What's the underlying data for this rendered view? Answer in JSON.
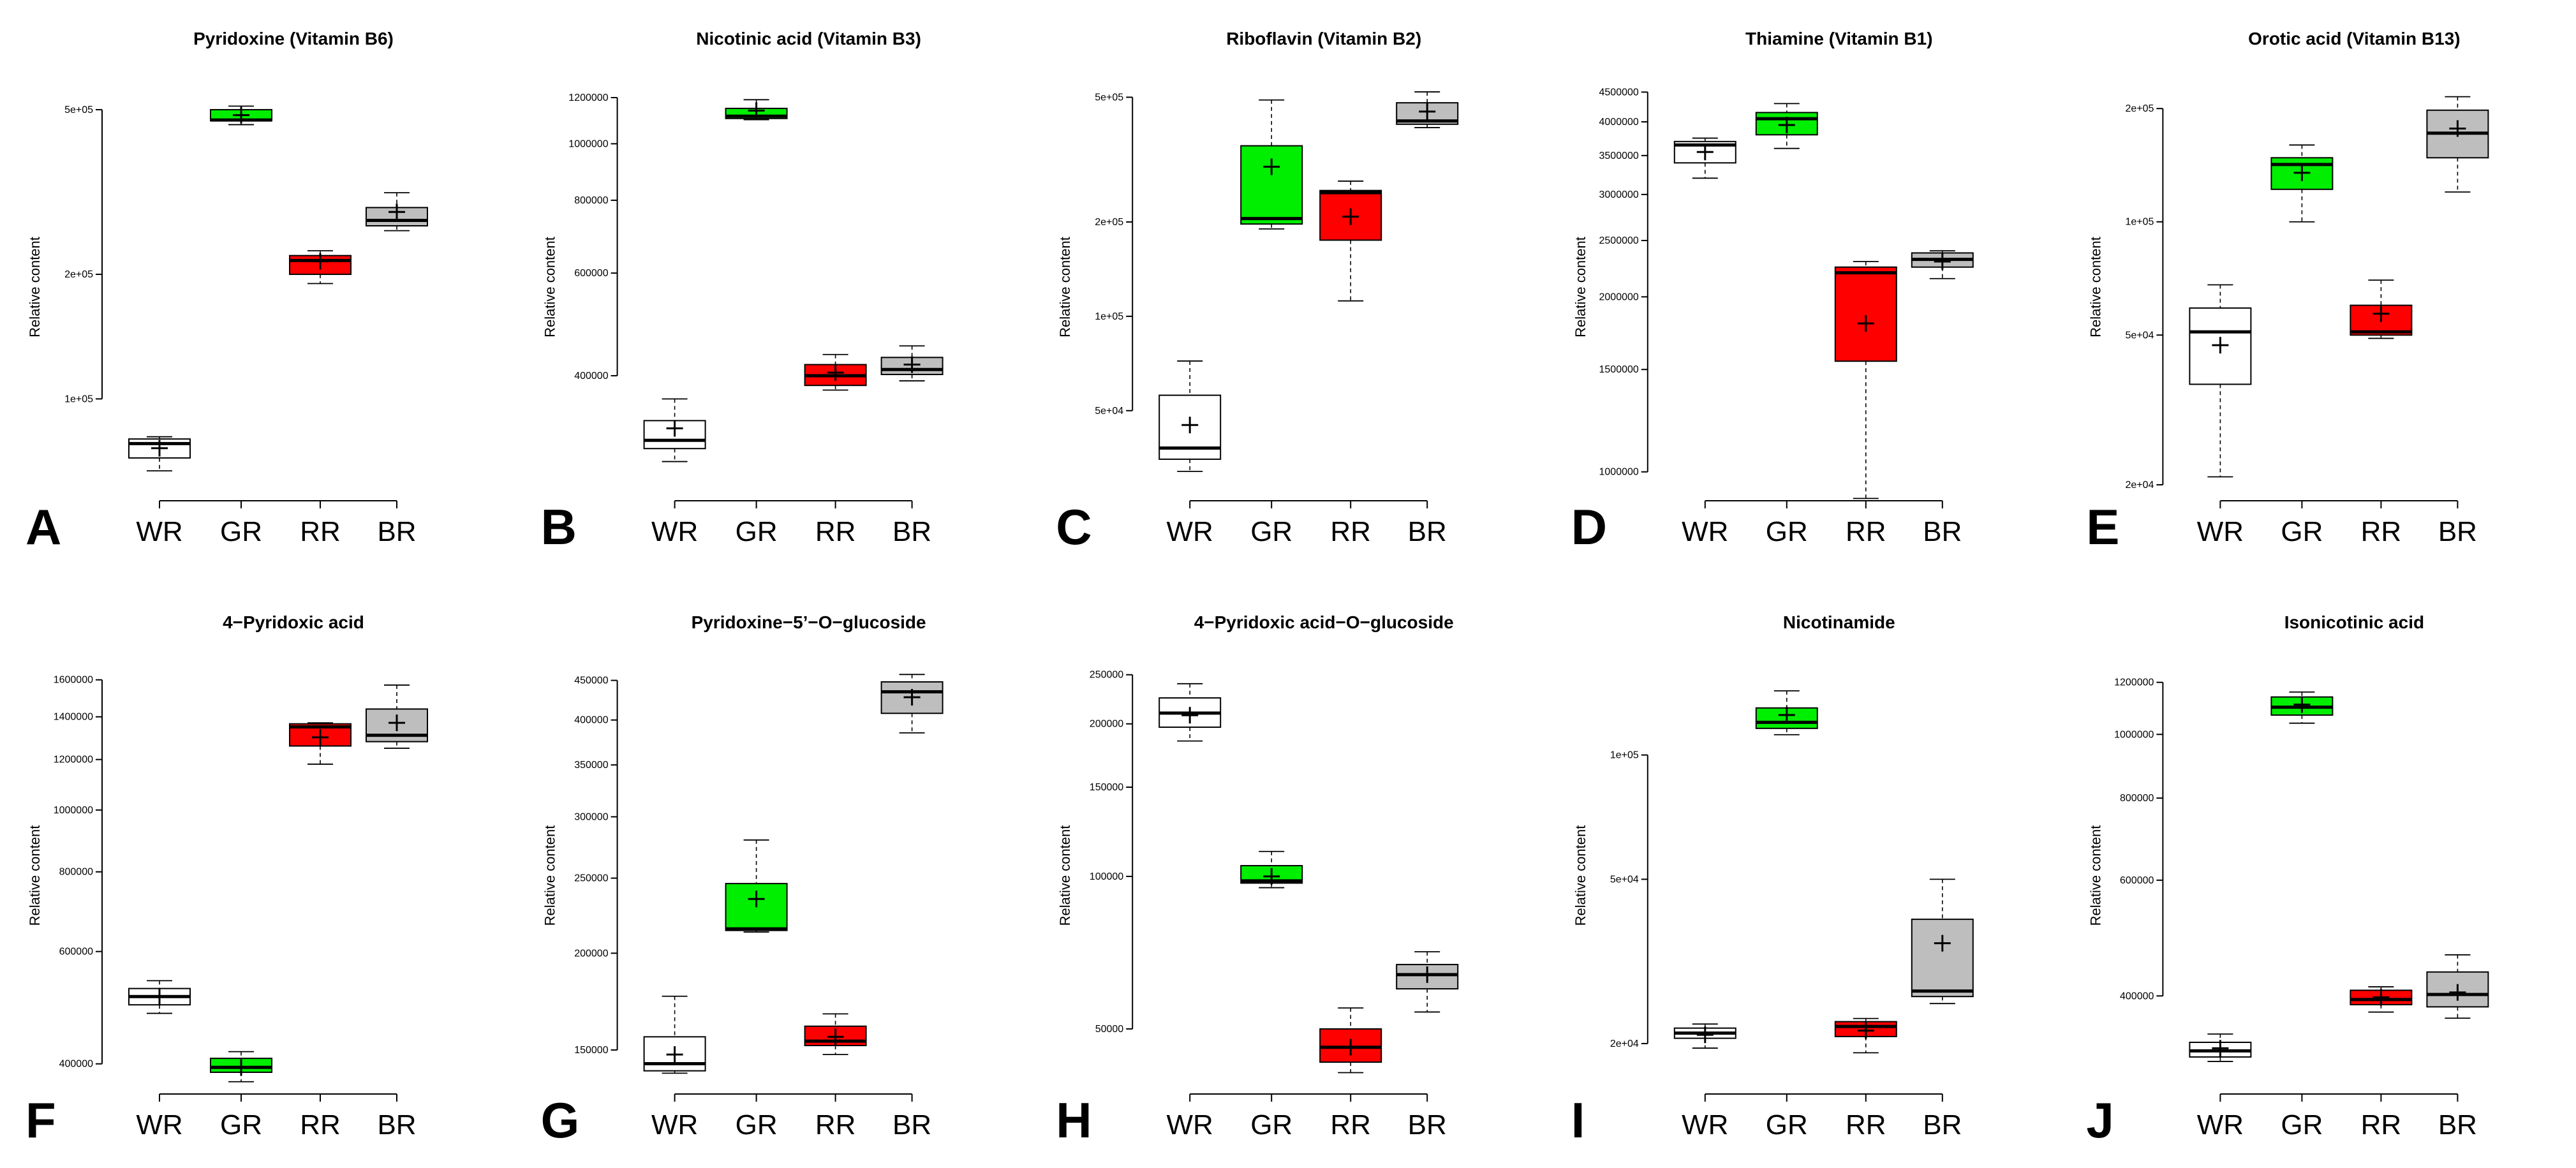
{
  "figure": {
    "ylabel": "Relative content",
    "categories": [
      "WR",
      "GR",
      "RR",
      "BR"
    ],
    "colors": {
      "WR": "#ffffff",
      "GR": "#00ee00",
      "RR": "#ff0000",
      "BR": "#bebebe"
    }
  },
  "chart_data": [
    {
      "letter": "A",
      "title": "Pyridoxine (Vitamin B6)",
      "type": "box",
      "scale": "log",
      "ylim": [
        62000,
        560000
      ],
      "ticks": [
        {
          "v": 100000,
          "label": "1e+05"
        },
        {
          "v": 200000,
          "label": "2e+05"
        },
        {
          "v": 500000,
          "label": "5e+05"
        }
      ],
      "boxes": [
        {
          "cat": "WR",
          "min": 67000,
          "q1": 72000,
          "median": 78000,
          "q3": 80000,
          "max": 81000,
          "mean": 76000
        },
        {
          "cat": "GR",
          "min": 460000,
          "q1": 470000,
          "median": 472000,
          "q3": 500000,
          "max": 510000,
          "mean": 485000
        },
        {
          "cat": "RR",
          "min": 190000,
          "q1": 200000,
          "median": 216000,
          "q3": 222000,
          "max": 228000,
          "mean": 215000
        },
        {
          "cat": "BR",
          "min": 255000,
          "q1": 262000,
          "median": 270000,
          "q3": 290000,
          "max": 315000,
          "mean": 283000
        }
      ]
    },
    {
      "letter": "B",
      "title": "Nicotinic acid (Vitamin B3)",
      "type": "box",
      "scale": "log",
      "ylim": [
        260000,
        1240000
      ],
      "ticks": [
        {
          "v": 400000,
          "label": "400000"
        },
        {
          "v": 600000,
          "label": "600000"
        },
        {
          "v": 800000,
          "label": "800000"
        },
        {
          "v": 1000000,
          "label": "1000000"
        },
        {
          "v": 1200000,
          "label": "1200000"
        }
      ],
      "boxes": [
        {
          "cat": "WR",
          "min": 285000,
          "q1": 300000,
          "median": 310000,
          "q3": 335000,
          "max": 365000,
          "mean": 325000
        },
        {
          "cat": "GR",
          "min": 1100000,
          "q1": 1105000,
          "median": 1115000,
          "q3": 1150000,
          "max": 1190000,
          "mean": 1140000
        },
        {
          "cat": "RR",
          "min": 378000,
          "q1": 385000,
          "median": 400000,
          "q3": 418000,
          "max": 435000,
          "mean": 405000
        },
        {
          "cat": "BR",
          "min": 392000,
          "q1": 402000,
          "median": 410000,
          "q3": 430000,
          "max": 450000,
          "mean": 418000
        }
      ]
    },
    {
      "letter": "C",
      "title": "Riboflavin (Vitamin B2)",
      "type": "box",
      "scale": "log",
      "ylim": [
        29000,
        530000
      ],
      "ticks": [
        {
          "v": 50000,
          "label": "5e+04"
        },
        {
          "v": 100000,
          "label": "1e+05"
        },
        {
          "v": 200000,
          "label": "2e+05"
        },
        {
          "v": 500000,
          "label": "5e+05"
        }
      ],
      "boxes": [
        {
          "cat": "WR",
          "min": 32000,
          "q1": 35000,
          "median": 38000,
          "q3": 56000,
          "max": 72000,
          "mean": 45000
        },
        {
          "cat": "GR",
          "min": 190000,
          "q1": 197000,
          "median": 205000,
          "q3": 350000,
          "max": 490000,
          "mean": 300000
        },
        {
          "cat": "RR",
          "min": 112000,
          "q1": 175000,
          "median": 248000,
          "q3": 252000,
          "max": 270000,
          "mean": 208000
        },
        {
          "cat": "BR",
          "min": 400000,
          "q1": 410000,
          "median": 420000,
          "q3": 480000,
          "max": 520000,
          "mean": 450000
        }
      ]
    },
    {
      "letter": "D",
      "title": "Thiamine (Vitamin B1)",
      "type": "box",
      "scale": "log",
      "ylim": [
        950000,
        4550000
      ],
      "ticks": [
        {
          "v": 1000000,
          "label": "1000000"
        },
        {
          "v": 1500000,
          "label": "1500000"
        },
        {
          "v": 2000000,
          "label": "2000000"
        },
        {
          "v": 2500000,
          "label": "2500000"
        },
        {
          "v": 3000000,
          "label": "3000000"
        },
        {
          "v": 3500000,
          "label": "3500000"
        },
        {
          "v": 4000000,
          "label": "4000000"
        },
        {
          "v": 4500000,
          "label": "4500000"
        }
      ],
      "boxes": [
        {
          "cat": "WR",
          "min": 3200000,
          "q1": 3400000,
          "median": 3650000,
          "q3": 3700000,
          "max": 3750000,
          "mean": 3550000
        },
        {
          "cat": "GR",
          "min": 3600000,
          "q1": 3800000,
          "median": 4050000,
          "q3": 4150000,
          "max": 4300000,
          "mean": 3950000
        },
        {
          "cat": "RR",
          "min": 900000,
          "q1": 1550000,
          "median": 2200000,
          "q3": 2250000,
          "max": 2300000,
          "mean": 1800000
        },
        {
          "cat": "BR",
          "min": 2150000,
          "q1": 2250000,
          "median": 2320000,
          "q3": 2380000,
          "max": 2400000,
          "mean": 2300000
        }
      ]
    },
    {
      "letter": "E",
      "title": "Orotic acid (Vitamin B13)",
      "type": "box",
      "scale": "log",
      "ylim": [
        20000,
        225000
      ],
      "ticks": [
        {
          "v": 20000,
          "label": "2e+04"
        },
        {
          "v": 50000,
          "label": "5e+04"
        },
        {
          "v": 100000,
          "label": "1e+05"
        },
        {
          "v": 200000,
          "label": "2e+05"
        }
      ],
      "boxes": [
        {
          "cat": "WR",
          "min": 21000,
          "q1": 37000,
          "median": 51000,
          "q3": 59000,
          "max": 68000,
          "mean": 47000
        },
        {
          "cat": "GR",
          "min": 100000,
          "q1": 122000,
          "median": 142000,
          "q3": 148000,
          "max": 160000,
          "mean": 135000
        },
        {
          "cat": "RR",
          "min": 49000,
          "q1": 50000,
          "median": 51000,
          "q3": 60000,
          "max": 70000,
          "mean": 57000
        },
        {
          "cat": "BR",
          "min": 120000,
          "q1": 148000,
          "median": 172000,
          "q3": 198000,
          "max": 215000,
          "mean": 177000
        }
      ]
    },
    {
      "letter": "F",
      "title": "4−Pyridoxic acid",
      "type": "box",
      "scale": "log",
      "ylim": [
        380000,
        1640000
      ],
      "ticks": [
        {
          "v": 400000,
          "label": "400000"
        },
        {
          "v": 600000,
          "label": "600000"
        },
        {
          "v": 800000,
          "label": "800000"
        },
        {
          "v": 1000000,
          "label": "1000000"
        },
        {
          "v": 1200000,
          "label": "1200000"
        },
        {
          "v": 1400000,
          "label": "1400000"
        },
        {
          "v": 1600000,
          "label": "1600000"
        }
      ],
      "boxes": [
        {
          "cat": "WR",
          "min": 480000,
          "q1": 495000,
          "median": 510000,
          "q3": 525000,
          "max": 540000,
          "mean": 510000
        },
        {
          "cat": "GR",
          "min": 375000,
          "q1": 388000,
          "median": 395000,
          "q3": 408000,
          "max": 418000,
          "mean": 395000
        },
        {
          "cat": "RR",
          "min": 1180000,
          "q1": 1260000,
          "median": 1350000,
          "q3": 1365000,
          "max": 1370000,
          "mean": 1300000
        },
        {
          "cat": "BR",
          "min": 1250000,
          "q1": 1280000,
          "median": 1310000,
          "q3": 1440000,
          "max": 1570000,
          "mean": 1370000
        }
      ]
    },
    {
      "letter": "G",
      "title": "Pyridoxine−5’−O−glucoside",
      "type": "box",
      "scale": "log",
      "ylim": [
        138000,
        460000
      ],
      "ticks": [
        {
          "v": 150000,
          "label": "150000"
        },
        {
          "v": 200000,
          "label": "200000"
        },
        {
          "v": 250000,
          "label": "250000"
        },
        {
          "v": 300000,
          "label": "300000"
        },
        {
          "v": 350000,
          "label": "350000"
        },
        {
          "v": 400000,
          "label": "400000"
        },
        {
          "v": 450000,
          "label": "450000"
        }
      ],
      "boxes": [
        {
          "cat": "WR",
          "min": 140000,
          "q1": 141000,
          "median": 144000,
          "q3": 156000,
          "max": 176000,
          "mean": 148000
        },
        {
          "cat": "GR",
          "min": 213000,
          "q1": 214000,
          "median": 215000,
          "q3": 246000,
          "max": 280000,
          "mean": 235000
        },
        {
          "cat": "RR",
          "min": 148000,
          "q1": 152000,
          "median": 154000,
          "q3": 161000,
          "max": 167000,
          "mean": 156000
        },
        {
          "cat": "BR",
          "min": 385000,
          "q1": 408000,
          "median": 435000,
          "q3": 448000,
          "max": 458000,
          "mean": 428000
        }
      ]
    },
    {
      "letter": "H",
      "title": "4−Pyridoxic acid−O−glucoside",
      "type": "box",
      "scale": "log",
      "ylim": [
        40000,
        252000
      ],
      "ticks": [
        {
          "v": 50000,
          "label": "50000"
        },
        {
          "v": 100000,
          "label": "100000"
        },
        {
          "v": 150000,
          "label": "150000"
        },
        {
          "v": 200000,
          "label": "200000"
        },
        {
          "v": 250000,
          "label": "250000"
        }
      ],
      "boxes": [
        {
          "cat": "WR",
          "min": 185000,
          "q1": 197000,
          "median": 210000,
          "q3": 225000,
          "max": 240000,
          "mean": 208000
        },
        {
          "cat": "GR",
          "min": 95000,
          "q1": 97000,
          "median": 98000,
          "q3": 105000,
          "max": 112000,
          "mean": 100000
        },
        {
          "cat": "RR",
          "min": 41000,
          "q1": 43000,
          "median": 46000,
          "q3": 50000,
          "max": 55000,
          "mean": 46000
        },
        {
          "cat": "BR",
          "min": 54000,
          "q1": 60000,
          "median": 64000,
          "q3": 67000,
          "max": 71000,
          "mean": 64000
        }
      ]
    },
    {
      "letter": "I",
      "title": "Nicotinamide",
      "type": "box",
      "scale": "log",
      "ylim": [
        16500,
        158000
      ],
      "ticks": [
        {
          "v": 20000,
          "label": "2e+04"
        },
        {
          "v": 50000,
          "label": "5e+04"
        },
        {
          "v": 100000,
          "label": "1e+05"
        }
      ],
      "boxes": [
        {
          "cat": "WR",
          "min": 19500,
          "q1": 20600,
          "median": 21200,
          "q3": 21800,
          "max": 22300,
          "mean": 21000
        },
        {
          "cat": "GR",
          "min": 112000,
          "q1": 116000,
          "median": 120000,
          "q3": 130000,
          "max": 143000,
          "mean": 125000
        },
        {
          "cat": "RR",
          "min": 19000,
          "q1": 20800,
          "median": 22000,
          "q3": 22600,
          "max": 23000,
          "mean": 21500
        },
        {
          "cat": "BR",
          "min": 25000,
          "q1": 26000,
          "median": 26800,
          "q3": 40000,
          "max": 50000,
          "mean": 35000
        }
      ]
    },
    {
      "letter": "J",
      "title": "Isonicotinic acid",
      "type": "box",
      "scale": "log",
      "ylim": [
        300000,
        1240000
      ],
      "ticks": [
        {
          "v": 400000,
          "label": "400000"
        },
        {
          "v": 600000,
          "label": "600000"
        },
        {
          "v": 800000,
          "label": "800000"
        },
        {
          "v": 1000000,
          "label": "1000000"
        },
        {
          "v": 1200000,
          "label": "1200000"
        }
      ],
      "boxes": [
        {
          "cat": "WR",
          "min": 318000,
          "q1": 323000,
          "median": 330000,
          "q3": 340000,
          "max": 350000,
          "mean": 333000
        },
        {
          "cat": "GR",
          "min": 1040000,
          "q1": 1070000,
          "median": 1100000,
          "q3": 1140000,
          "max": 1160000,
          "mean": 1110000
        },
        {
          "cat": "RR",
          "min": 378000,
          "q1": 388000,
          "median": 395000,
          "q3": 408000,
          "max": 413000,
          "mean": 398000
        },
        {
          "cat": "BR",
          "min": 370000,
          "q1": 385000,
          "median": 402000,
          "q3": 435000,
          "max": 462000,
          "mean": 405000
        }
      ]
    }
  ]
}
